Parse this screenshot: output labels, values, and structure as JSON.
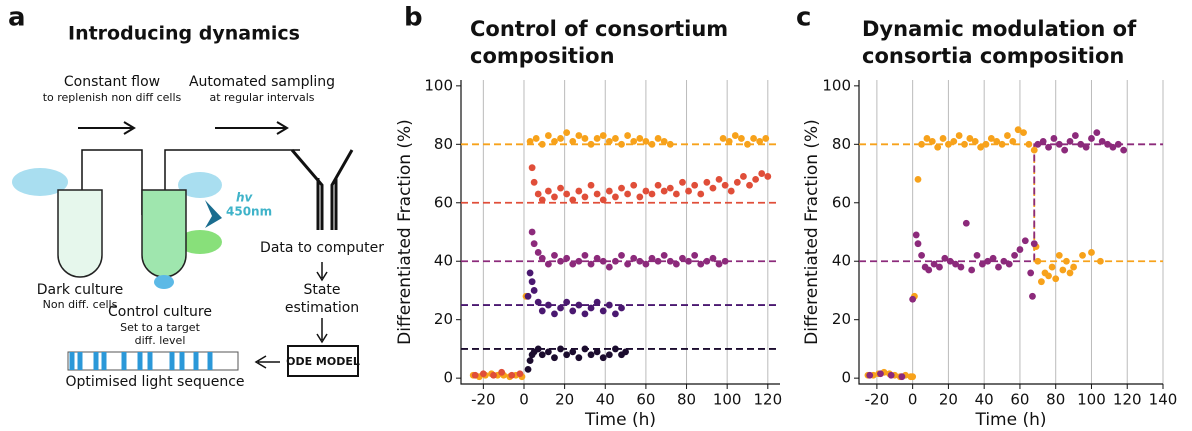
{
  "diagram": {
    "panel_label": "a",
    "title": "Introducing dynamics",
    "flow": "Constant flow",
    "flow_note": "to replenish non diff cells",
    "sampling": "Automated sampling",
    "sampling_note": "at regular intervals",
    "light": "hv",
    "wavelength": "450nm",
    "dark": "Dark culture",
    "dark_note": "Non diff. cells",
    "control": "Control culture",
    "control_note1": "Set to a target",
    "control_note2": "diff. level",
    "computer": "Data to computer",
    "state1": "State",
    "state2": "estimation",
    "model": "ODE MODEL",
    "sequence": "Optimised light sequence"
  },
  "chart_data": [
    {
      "type": "scatter",
      "panel_label": "b",
      "title": "Control of consortium composition",
      "xlabel": "Time (h)",
      "ylabel": "Differentiated Fraction (%)",
      "xlim": [
        -31,
        126
      ],
      "ylim": [
        -2,
        102
      ],
      "xticks": [
        -20,
        0,
        20,
        40,
        60,
        80,
        100,
        120
      ],
      "yticks": [
        0,
        20,
        40,
        60,
        80,
        100
      ],
      "grid": "x",
      "references": [
        {
          "color": "#f7a21b",
          "x": [
            -31,
            126
          ],
          "y": [
            80,
            80
          ]
        },
        {
          "color": "#e04e39",
          "x": [
            -31,
            126
          ],
          "y": [
            60,
            60
          ]
        },
        {
          "color": "#8c2a7b",
          "x": [
            -31,
            126
          ],
          "y": [
            40,
            40
          ]
        },
        {
          "color": "#4a1870",
          "x": [
            -31,
            126
          ],
          "y": [
            25,
            25
          ]
        },
        {
          "color": "#1b0c2e",
          "x": [
            -31,
            126
          ],
          "y": [
            10,
            10
          ]
        }
      ],
      "series": [
        {
          "color": "#f7a21b",
          "x": [
            -25,
            -22,
            -19,
            -16,
            -13,
            -10,
            -7,
            -4,
            -1,
            1,
            3,
            6,
            9,
            12,
            15,
            18,
            21,
            24,
            27,
            30,
            33,
            36,
            39,
            42,
            45,
            48,
            51,
            54,
            57,
            60,
            63,
            66,
            69,
            72,
            98,
            101,
            104,
            107,
            110,
            113,
            116,
            119
          ],
          "values": [
            1,
            0.5,
            1,
            1.5,
            1,
            1,
            0.5,
            1,
            0.5,
            28,
            81,
            82,
            80,
            83,
            81,
            82,
            84,
            81,
            83,
            82,
            80,
            82,
            83,
            81,
            82,
            80,
            83,
            81,
            82,
            81,
            80,
            82,
            81,
            80,
            82,
            81,
            83,
            82,
            80,
            82,
            81,
            82
          ]
        },
        {
          "color": "#e04e39",
          "x": [
            -24,
            -20,
            -15,
            -11,
            -6,
            -2,
            4,
            5,
            7,
            9,
            12,
            15,
            18,
            21,
            24,
            27,
            30,
            33,
            36,
            39,
            42,
            45,
            48,
            51,
            54,
            57,
            60,
            63,
            66,
            69,
            72,
            75,
            78,
            81,
            84,
            87,
            90,
            93,
            96,
            99,
            102,
            105,
            108,
            111,
            114,
            117,
            120
          ],
          "values": [
            1,
            1.5,
            1,
            2,
            1,
            1.5,
            72,
            67,
            63,
            61,
            64,
            62,
            65,
            63,
            61,
            64,
            62,
            66,
            63,
            61,
            64,
            62,
            65,
            63,
            66,
            62,
            64,
            63,
            66,
            64,
            65,
            63,
            67,
            64,
            66,
            63,
            67,
            65,
            68,
            66,
            64,
            67,
            69,
            66,
            68,
            70,
            69
          ]
        },
        {
          "color": "#8c2a7b",
          "x": [
            4,
            5,
            7,
            9,
            12,
            15,
            18,
            21,
            24,
            27,
            30,
            33,
            36,
            39,
            42,
            45,
            48,
            51,
            54,
            57,
            60,
            63,
            66,
            69,
            72,
            75,
            78,
            81,
            84,
            87,
            90,
            93,
            96,
            99
          ],
          "values": [
            50,
            46,
            43,
            41,
            39,
            42,
            40,
            41,
            39,
            40,
            42,
            39,
            41,
            40,
            38,
            40,
            42,
            39,
            41,
            40,
            39,
            41,
            40,
            42,
            40,
            39,
            41,
            40,
            42,
            39,
            40,
            41,
            39,
            40
          ]
        },
        {
          "color": "#4a1870",
          "x": [
            2,
            3,
            4,
            5,
            7,
            9,
            12,
            15,
            18,
            21,
            24,
            27,
            30,
            33,
            36,
            39,
            42,
            45,
            48
          ],
          "values": [
            28,
            36,
            33,
            30,
            26,
            23,
            25,
            22,
            24,
            26,
            23,
            25,
            22,
            24,
            26,
            23,
            25,
            22,
            24
          ]
        },
        {
          "color": "#1b0c2e",
          "x": [
            2,
            3,
            4,
            5,
            7,
            9,
            12,
            15,
            18,
            21,
            24,
            27,
            30,
            33,
            36,
            39,
            42,
            45,
            48,
            50
          ],
          "values": [
            3,
            6,
            8,
            9,
            10,
            8,
            9,
            7,
            10,
            8,
            9,
            7,
            10,
            8,
            9,
            7,
            8,
            10,
            8,
            9
          ]
        }
      ]
    },
    {
      "type": "scatter",
      "panel_label": "c",
      "title": "Dynamic modulation of consortia composition",
      "xlabel": "Time (h)",
      "ylabel": "Differentiated Fraction (%)",
      "xlim": [
        -30,
        140
      ],
      "ylim": [
        -2,
        102
      ],
      "xticks": [
        -20,
        0,
        20,
        40,
        60,
        80,
        100,
        120,
        140
      ],
      "yticks": [
        0,
        20,
        40,
        60,
        80,
        100
      ],
      "grid": "x",
      "references": [
        {
          "color": "#f7a21b",
          "x": [
            -30,
            68,
            68,
            140
          ],
          "y": [
            80,
            80,
            40,
            40
          ]
        },
        {
          "color": "#8c2a7b",
          "x": [
            -30,
            68,
            68,
            140
          ],
          "y": [
            40,
            40,
            80,
            80
          ]
        }
      ],
      "series": [
        {
          "color": "#f7a21b",
          "x": [
            -25,
            -22,
            -19,
            -16,
            -13,
            -10,
            -7,
            -4,
            -1,
            0,
            1,
            3,
            5,
            8,
            11,
            14,
            17,
            20,
            23,
            26,
            29,
            32,
            35,
            38,
            41,
            44,
            47,
            50,
            53,
            56,
            59,
            62,
            65,
            68,
            69,
            70,
            72,
            74,
            76,
            78,
            80,
            82,
            84,
            86,
            88,
            90,
            95,
            100,
            105
          ],
          "values": [
            1,
            1,
            1.5,
            2,
            1.5,
            1,
            0.5,
            1,
            0.5,
            0.5,
            28,
            68,
            80,
            82,
            81,
            79,
            82,
            80,
            81,
            83,
            80,
            82,
            81,
            79,
            80,
            82,
            81,
            80,
            83,
            81,
            85,
            84,
            80,
            78,
            45,
            40,
            33,
            36,
            35,
            38,
            34,
            42,
            37,
            40,
            36,
            38,
            42,
            43,
            40
          ]
        },
        {
          "color": "#8c2a7b",
          "x": [
            -24,
            -18,
            -12,
            -6,
            0,
            2,
            3,
            5,
            7,
            9,
            12,
            15,
            18,
            21,
            24,
            27,
            30,
            33,
            36,
            39,
            42,
            45,
            48,
            51,
            54,
            57,
            60,
            63,
            66,
            67,
            68,
            70,
            73,
            76,
            79,
            82,
            85,
            88,
            91,
            94,
            97,
            100,
            103,
            106,
            109,
            112,
            115,
            118
          ],
          "values": [
            1,
            1.5,
            1,
            0.5,
            27,
            49,
            46,
            42,
            38,
            37,
            39,
            38,
            41,
            40,
            39,
            38,
            53,
            37,
            42,
            39,
            40,
            41,
            38,
            40,
            39,
            42,
            44,
            47,
            36,
            28,
            46,
            80,
            81,
            79,
            82,
            80,
            78,
            81,
            83,
            80,
            79,
            82,
            84,
            81,
            80,
            79,
            80,
            78
          ]
        }
      ]
    }
  ]
}
